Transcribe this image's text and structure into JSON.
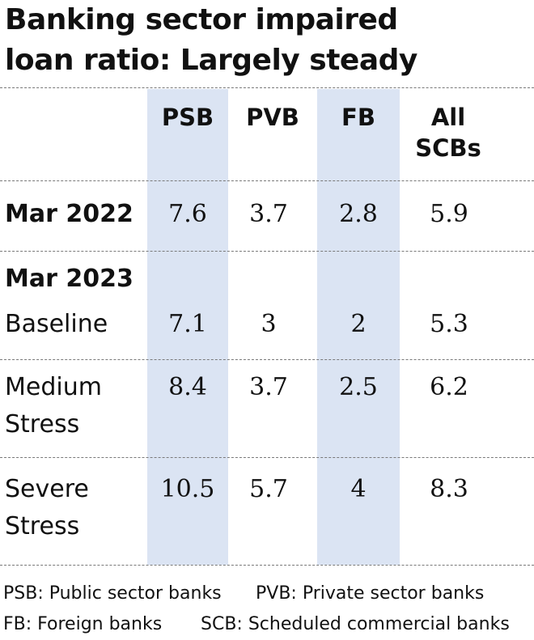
{
  "chart_data": {
    "type": "table",
    "title": "Banking sector impaired loan ratio: Largely steady",
    "columns": [
      "PSB",
      "PVB",
      "FB",
      "All SCBs"
    ],
    "rows": [
      {
        "label": "Mar 2022",
        "values": [
          "7.6",
          "3.7",
          "2.8",
          "5.9"
        ]
      },
      {
        "label": "Mar 2023",
        "values": [
          "",
          "",
          "",
          ""
        ]
      },
      {
        "label": "Baseline",
        "values": [
          "7.1",
          "3",
          "2",
          "5.3"
        ]
      },
      {
        "label": "Medium Stress",
        "values": [
          "8.4",
          "3.7",
          "2.5",
          "6.2"
        ]
      },
      {
        "label": "Severe Stress",
        "values": [
          "10.5",
          "5.7",
          "4",
          "8.3"
        ]
      }
    ],
    "highlighted_columns": [
      "PSB",
      "FB"
    ],
    "highlight_color": "#dbe4f3"
  },
  "labels": {
    "title_line1": "Banking sector impaired",
    "title_line2": "loan ratio: Largely steady",
    "col_psb": "PSB",
    "col_pvb": "PVB",
    "col_fb": "FB",
    "col_all_l1": "All",
    "col_all_l2": "SCBs",
    "row_mar2022": "Mar 2022",
    "row_mar2023": "Mar 2023",
    "row_baseline": "Baseline",
    "row_medium_l1": "Medium",
    "row_medium_l2": "Stress",
    "row_severe_l1": "Severe",
    "row_severe_l2": "Stress"
  },
  "footnotes": {
    "psb": "PSB: Public sector banks",
    "pvb": "PVB: Private sector banks",
    "fb": "FB: Foreign banks",
    "scb": "SCB: Scheduled commercial banks"
  }
}
